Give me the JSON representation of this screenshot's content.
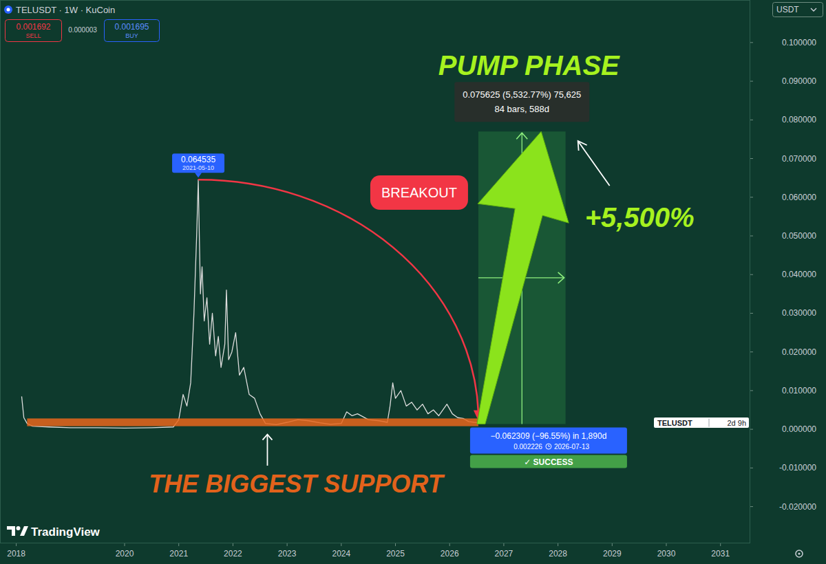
{
  "header": {
    "sell": {
      "value": 0.001692,
      "label": "SELL"
    },
    "spread": 3e-06,
    "buy": {
      "value": 0.001695,
      "label": "BUY"
    },
    "currency": "USDT",
    "logo": "TradingView"
  },
  "chart_data": {
    "type": "line",
    "title": "TELUSDT · 1W · KuCoin",
    "x": [
      2018.1,
      2018.14,
      2018.2,
      2018.3,
      2018.6,
      2019.0,
      2019.5,
      2020.0,
      2020.5,
      2020.9,
      2021.0,
      2021.08,
      2021.15,
      2021.22,
      2021.28,
      2021.33,
      2021.36,
      2021.4,
      2021.43,
      2021.47,
      2021.52,
      2021.57,
      2021.62,
      2021.68,
      2021.73,
      2021.78,
      2021.85,
      2021.88,
      2021.92,
      2021.98,
      2022.05,
      2022.12,
      2022.2,
      2022.3,
      2022.4,
      2022.5,
      2022.6,
      2022.8,
      2023.0,
      2023.2,
      2023.4,
      2023.6,
      2023.8,
      2024.0,
      2024.1,
      2024.2,
      2024.3,
      2024.5,
      2024.7,
      2024.85,
      2024.9,
      2024.95,
      2025.0,
      2025.1,
      2025.2,
      2025.3,
      2025.4,
      2025.5,
      2025.6,
      2025.7,
      2025.8,
      2025.95,
      2026.05,
      2026.15,
      2026.25,
      2026.35,
      2026.45,
      2026.53
    ],
    "series": [
      {
        "name": "TELUSDT",
        "color": "#dcdcdc",
        "values": [
          0.0085,
          0.003,
          0.0015,
          0.0008,
          0.0006,
          0.0004,
          0.0004,
          0.0003,
          0.0004,
          0.0006,
          0.0025,
          0.009,
          0.006,
          0.012,
          0.03,
          0.05,
          0.064535,
          0.035,
          0.042,
          0.028,
          0.034,
          0.022,
          0.03,
          0.019,
          0.024,
          0.016,
          0.022,
          0.036,
          0.018,
          0.02,
          0.025,
          0.014,
          0.016,
          0.009,
          0.008,
          0.004,
          0.0015,
          0.0012,
          0.0018,
          0.0025,
          0.0022,
          0.0017,
          0.0013,
          0.0015,
          0.0045,
          0.0035,
          0.004,
          0.0025,
          0.0022,
          0.0018,
          0.006,
          0.012,
          0.008,
          0.01,
          0.006,
          0.007,
          0.005,
          0.0065,
          0.004,
          0.005,
          0.0035,
          0.0065,
          0.004,
          0.003,
          0.0028,
          0.002,
          0.0018,
          0.0017
        ]
      }
    ],
    "xlim": [
      2017.7,
      2031.55
    ],
    "xticks": [
      2018,
      2020,
      2021,
      2022,
      2023,
      2024,
      2025,
      2026,
      2027,
      2028,
      2029,
      2030,
      2031
    ],
    "ylim": [
      -0.0295,
      0.111
    ],
    "yticks": [
      {
        "value": -0.02,
        "label": "-0.020000"
      },
      {
        "value": -0.01,
        "label": "-0.010000"
      },
      {
        "value": 0,
        "label": "0.000000"
      },
      {
        "value": 0.01,
        "label": "0.010000"
      },
      {
        "value": 0.02,
        "label": "0.020000"
      },
      {
        "value": 0.03,
        "label": "0.030000"
      },
      {
        "value": 0.04,
        "label": "0.040000"
      },
      {
        "value": 0.05,
        "label": "0.050000"
      },
      {
        "value": 0.06,
        "label": "0.060000"
      },
      {
        "value": 0.07,
        "label": "0.070000"
      },
      {
        "value": 0.08,
        "label": "0.080000"
      },
      {
        "value": 0.09,
        "label": "0.090000"
      },
      {
        "value": 0.1,
        "label": "0.100000"
      }
    ],
    "grid": false,
    "annotations": {
      "peak": {
        "x": 2021.36,
        "value": 0.064535,
        "date": "2021-05-10"
      },
      "breakout": "BREAKOUT",
      "drop": {
        "x": 2026.53,
        "value": 0.002226,
        "change": "−0.062309 (−96.55%) in 1,890d",
        "date": "2026-07-13",
        "status": "✓ SUCCESS"
      },
      "pump": {
        "title": "PUMP PHASE",
        "x": [
          2026.53,
          2028.14
        ],
        "y": [
          0.001367,
          0.076992
        ],
        "measure": "0.075625 (5,532.77%) 75,625",
        "bars": "84 bars, 588d",
        "gain": "+5,500%"
      },
      "support": {
        "label": "THE BIGGEST SUPPORT",
        "x": [
          2018.2,
          2026.53
        ],
        "y": [
          0.0008,
          0.0028
        ]
      },
      "countdown": "2d 9h"
    }
  }
}
